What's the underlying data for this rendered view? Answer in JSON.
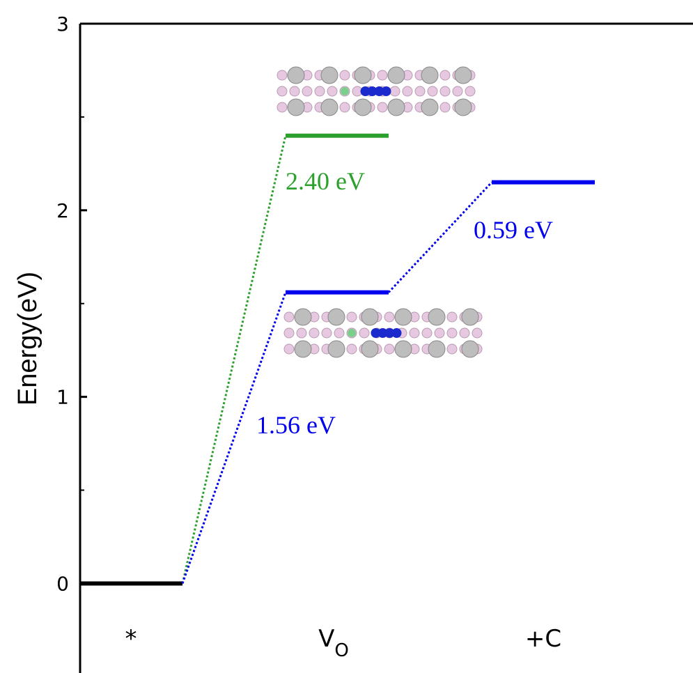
{
  "chart_data": {
    "type": "energy-levels",
    "ylabel": "Energy(eV)",
    "categories": [
      "*",
      "V",
      "+C"
    ],
    "category_subscripts": [
      null,
      "O",
      null
    ],
    "first_level_color": "#000000",
    "series": [
      {
        "color": "#2ca02c",
        "values": [
          0,
          2.4,
          null
        ],
        "value_labels": [
          null,
          "2.40 eV",
          null
        ]
      },
      {
        "color": "#0000ee",
        "values": [
          0,
          1.56,
          2.15
        ],
        "value_labels": [
          null,
          "1.56 eV",
          "0.59 eV"
        ]
      }
    ],
    "ylim": [
      -0.48,
      3
    ],
    "yticks": [
      0,
      1,
      2,
      3
    ],
    "yminor": [
      0.5,
      1.5,
      2.5
    ]
  }
}
